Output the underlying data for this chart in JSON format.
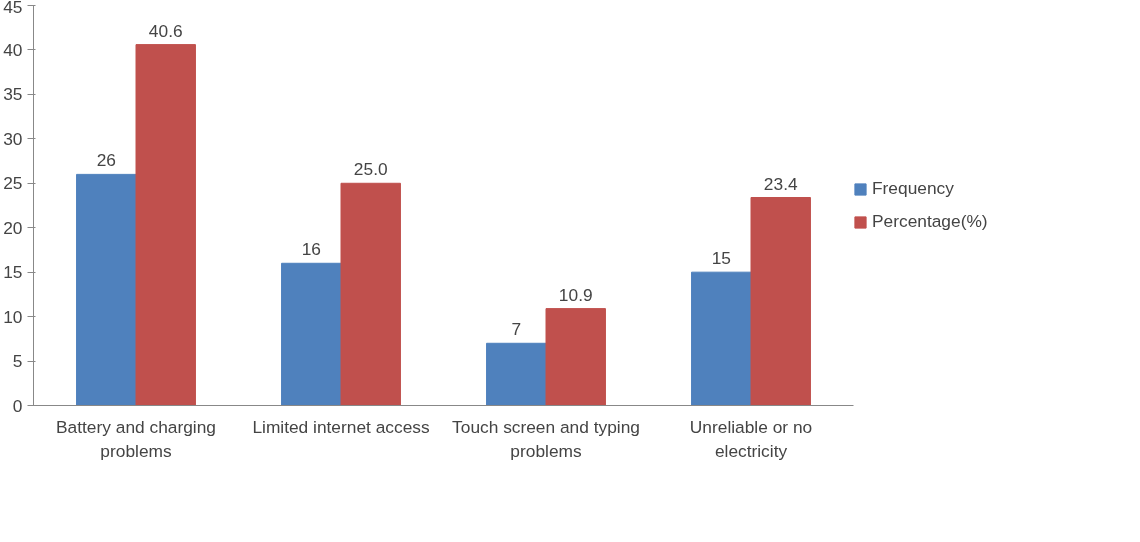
{
  "chart_data": {
    "type": "bar",
    "categories": [
      "Battery and charging problems",
      "Limited internet access",
      "Touch screen and typing problems",
      "Unreliable or no electricity"
    ],
    "series": [
      {
        "name": "Frequency",
        "color": "#4f81bd",
        "values": [
          26,
          16,
          7,
          15
        ],
        "value_labels": [
          "26",
          "16",
          "7",
          "15"
        ]
      },
      {
        "name": "Percentage(%)",
        "color": "#c0504d",
        "values": [
          40.6,
          25.0,
          10.9,
          23.4
        ],
        "value_labels": [
          "40.6",
          "25.0",
          "10.9",
          "23.4"
        ]
      }
    ],
    "ylim": [
      0,
      45
    ],
    "yticks": [
      0,
      5,
      10,
      15,
      20,
      25,
      30,
      35,
      40,
      45
    ],
    "grid": false,
    "legend": "right"
  }
}
